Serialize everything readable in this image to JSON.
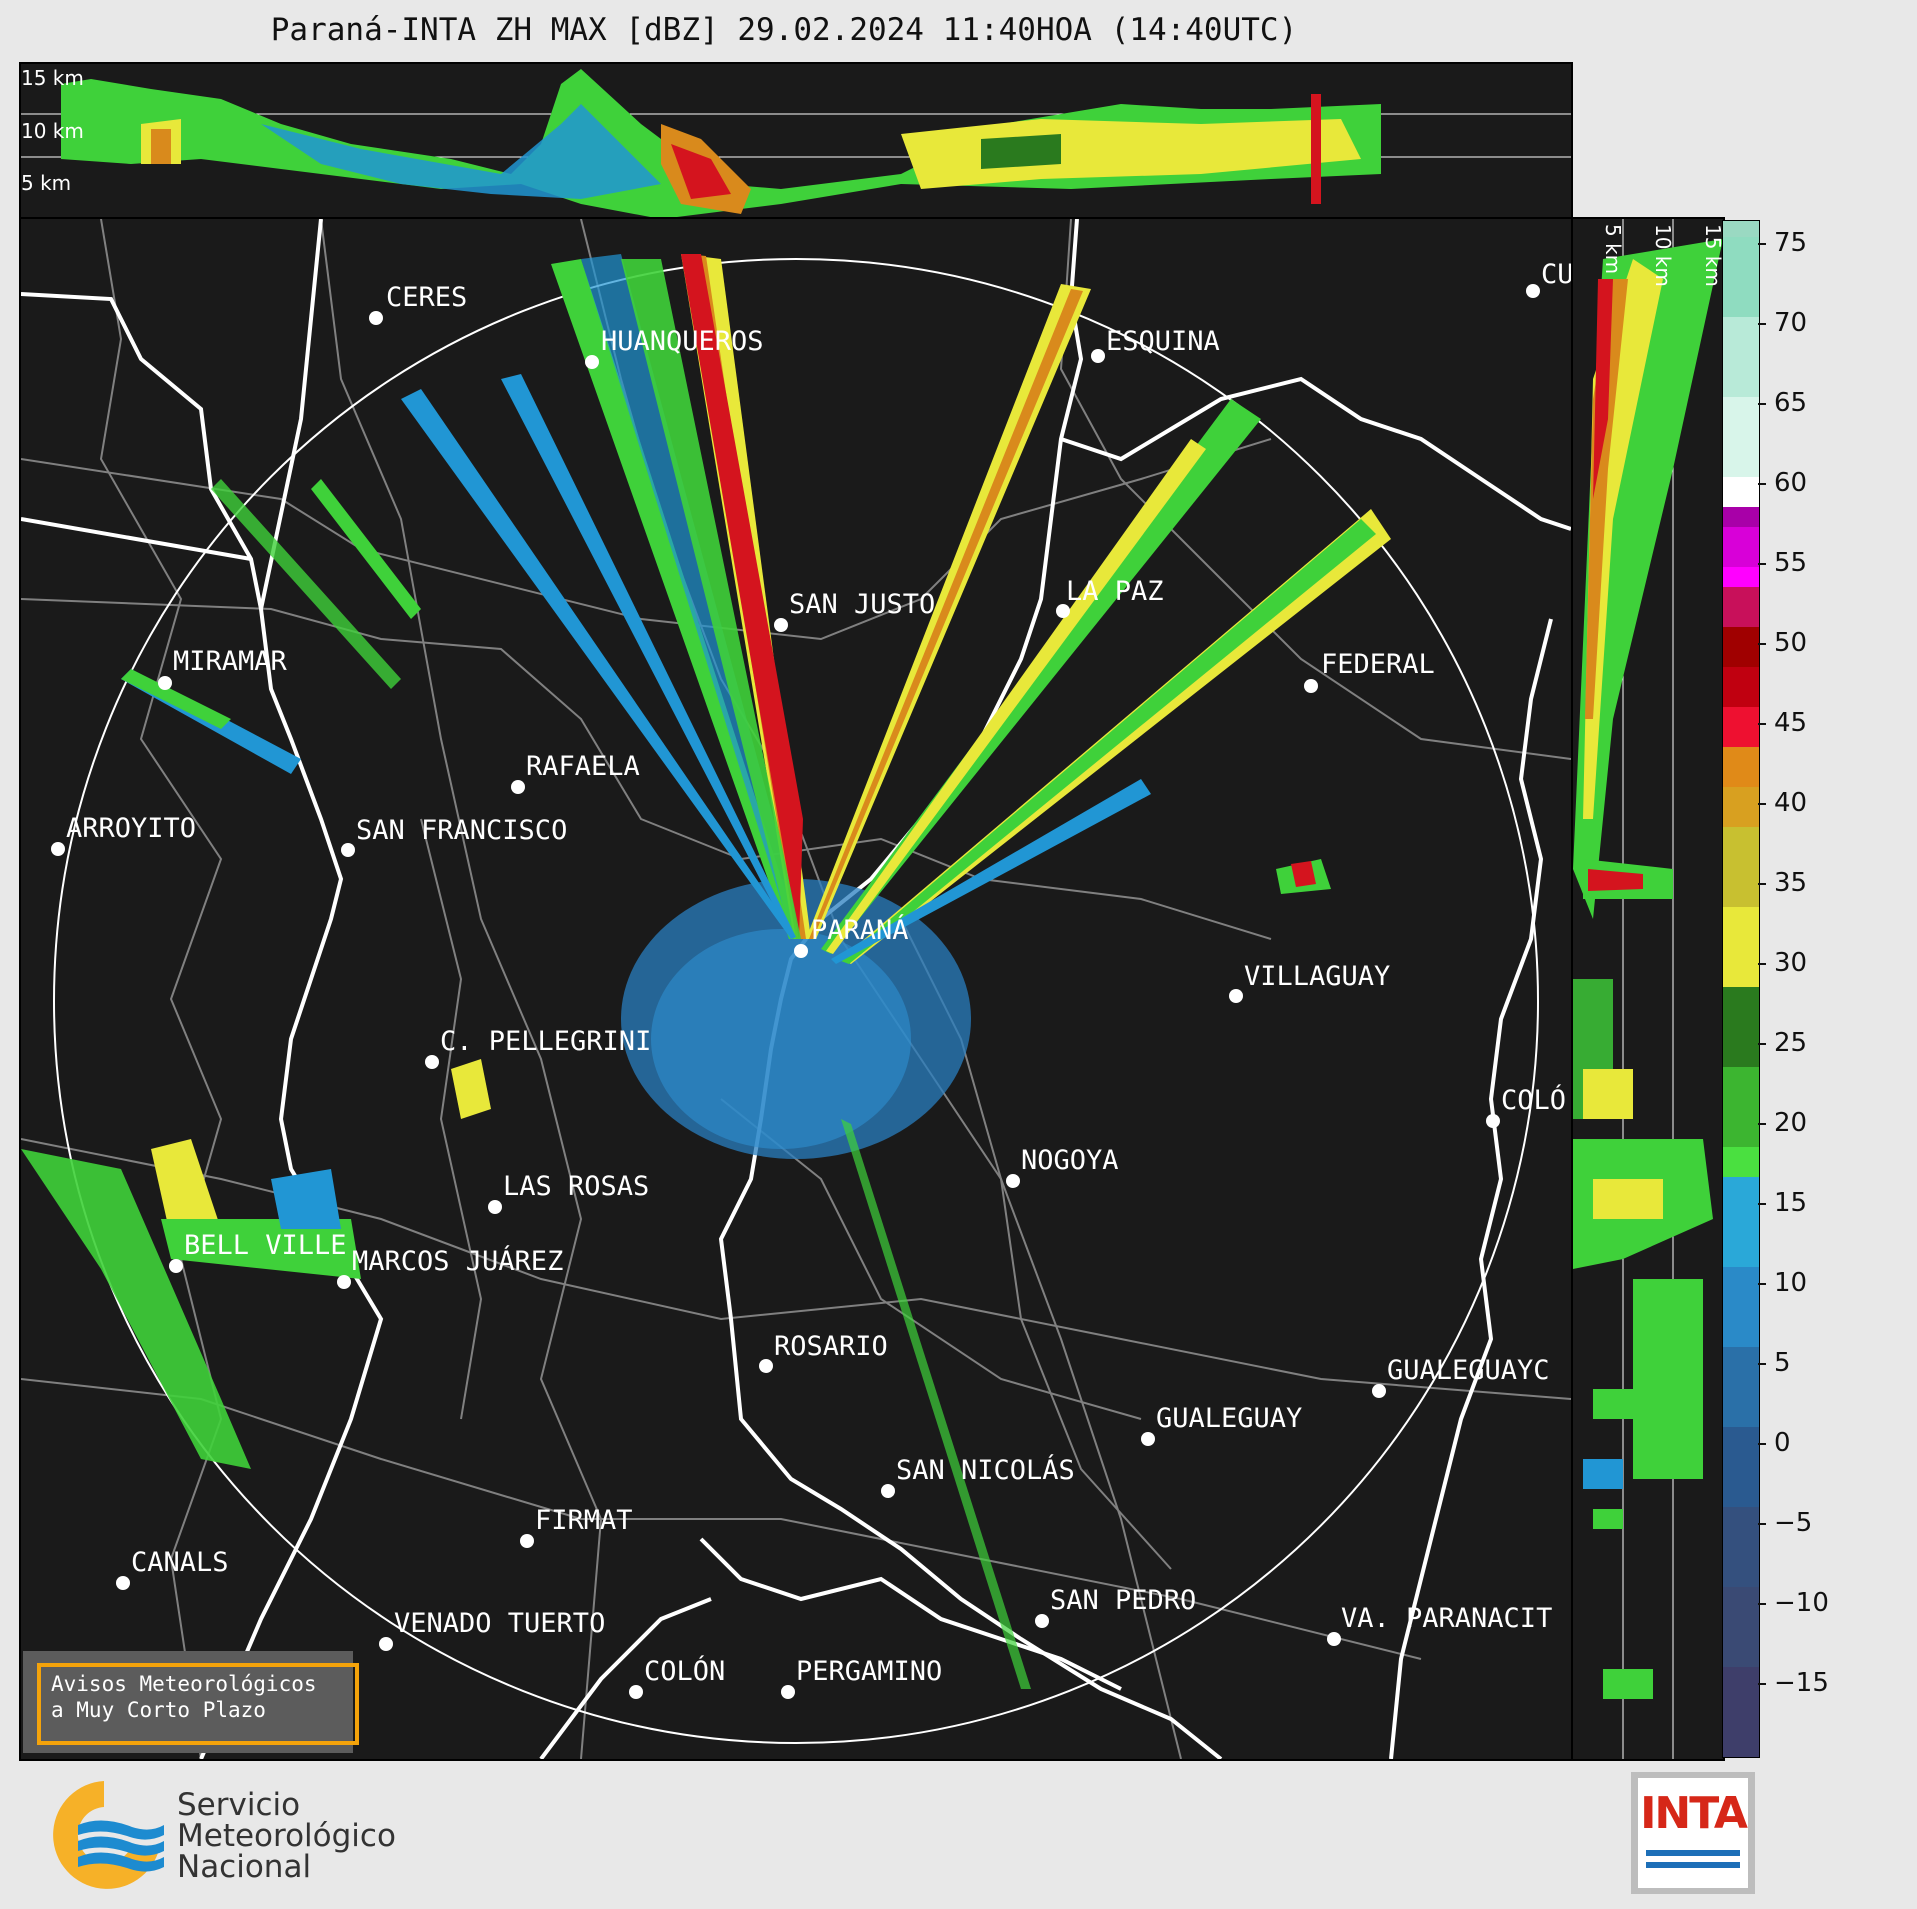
{
  "title": "Paraná-INTA ZH MAX [dBZ] 29.02.2024 11:40HOA (14:40UTC)",
  "height_labels_top": [
    "15 km",
    "10 km",
    "5 km"
  ],
  "height_labels_right": [
    "5 km",
    "10 km",
    "15 km"
  ],
  "colorbar": {
    "ticks": [
      "75",
      "70",
      "65",
      "60",
      "55",
      "50",
      "45",
      "40",
      "35",
      "30",
      "25",
      "20",
      "15",
      "10",
      "5",
      "0",
      "−5",
      "−10",
      "−15"
    ],
    "range": [
      -20,
      77
    ]
  },
  "cities": [
    {
      "name": "CERES"
    },
    {
      "name": "HUANQUEROS"
    },
    {
      "name": "ESQUINA"
    },
    {
      "name": "CU"
    },
    {
      "name": "SAN JUSTO"
    },
    {
      "name": "LA PAZ"
    },
    {
      "name": "FEDERAL"
    },
    {
      "name": "MIRAMAR"
    },
    {
      "name": "RAFAELA"
    },
    {
      "name": "ARROYITO"
    },
    {
      "name": "SAN FRANCISCO"
    },
    {
      "name": "PARANÁ"
    },
    {
      "name": "VILLAGUAY"
    },
    {
      "name": "C. PELLEGRINI"
    },
    {
      "name": "COLÓ"
    },
    {
      "name": "NOGOYA"
    },
    {
      "name": "LAS ROSAS"
    },
    {
      "name": "BELL VILLE"
    },
    {
      "name": "MARCOS JUÁREZ"
    },
    {
      "name": "ROSARIO"
    },
    {
      "name": "GUALEGUAYC"
    },
    {
      "name": "GUALEGUAY"
    },
    {
      "name": "SAN NICOLÁS"
    },
    {
      "name": "FIRMAT"
    },
    {
      "name": "CANALS"
    },
    {
      "name": "SAN PEDRO"
    },
    {
      "name": "VA. PARANACIT"
    },
    {
      "name": "VENADO TUERTO"
    },
    {
      "name": "COLÓN"
    },
    {
      "name": "PERGAMINO"
    }
  ],
  "avisos": {
    "line1": "Avisos Meteorológicos",
    "line2": "a Muy Corto Plazo"
  },
  "smn": {
    "line1": "Servicio",
    "line2": "Meteorológico",
    "line3": "Nacional"
  },
  "inta_logo": "INTA",
  "colors": {
    "background": "#1a1a1a",
    "border_lines": "#ffffff",
    "province_lines": "#808080",
    "accent": "#f4a30b"
  }
}
